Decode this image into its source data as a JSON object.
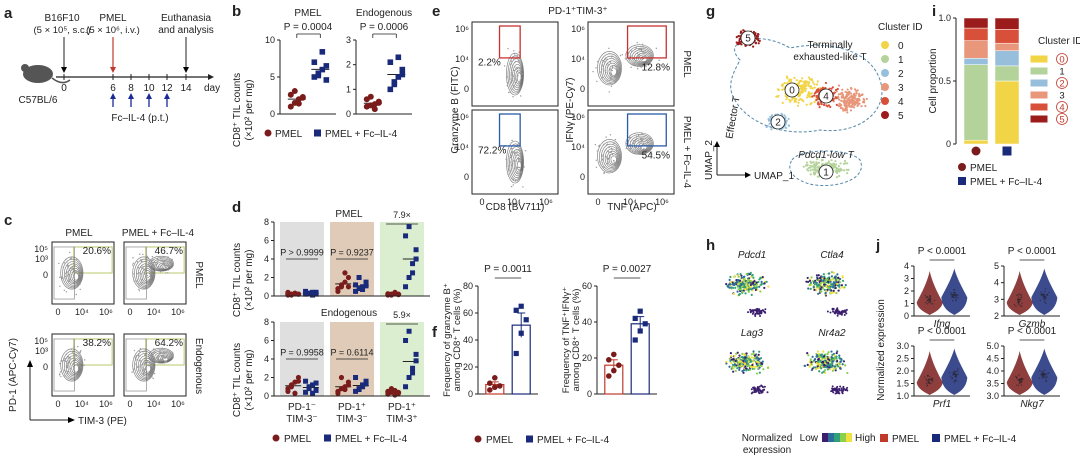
{
  "panel_letters": [
    "a",
    "b",
    "c",
    "d",
    "e",
    "f",
    "g",
    "h",
    "i",
    "j"
  ],
  "colors": {
    "pmel": "#7b1c1c",
    "fc": "#1a2a7a",
    "grey_bg": "#d9d9d9",
    "tan_bg": "#d9c2aa",
    "green_bg": "#d6ebc8",
    "red_gate": "#c83232",
    "blue_gate": "#2a5aa8"
  },
  "panel_a": {
    "tumor": "B16F10",
    "tumor_dose": "(5 × 10⁵, s.c.)",
    "pmel": "PMEL",
    "pmel_dose": "(5 × 10⁶, i.v.)",
    "endpoint": "Euthanasia",
    "endpoint2": "and analysis",
    "days": [
      "0",
      "6",
      "8",
      "10",
      "12",
      "14"
    ],
    "day_unit": "day",
    "mouse": "C57BL/6",
    "treatment": "Fc–IL-4 (p.t.)"
  },
  "chart_data": [
    {
      "id": "b",
      "type": "scatter",
      "ylabel": "CD8⁺ TIL counts",
      "ylabel2": "(×10² per mg)",
      "subplots": [
        {
          "title": "PMEL",
          "p": "P = 0.0004",
          "ylim": [
            0,
            10
          ],
          "yticks": [
            "0",
            "5",
            "10"
          ],
          "series": [
            {
              "name": "PMEL",
              "values": [
                1.0,
                1.5,
                2.0,
                2.3,
                2.6,
                3.1,
                1.4,
                2.2
              ]
            },
            {
              "name": "PMEL + Fc–IL-4",
              "values": [
                5.0,
                5.5,
                6.0,
                6.5,
                7.0,
                5.2,
                8.4,
                4.6
              ]
            }
          ]
        },
        {
          "title": "Endogenous",
          "p": "P = 0.0006",
          "ylim": [
            0,
            3
          ],
          "yticks": [
            "0",
            "1",
            "2",
            "3"
          ],
          "series": [
            {
              "name": "PMEL",
              "values": [
                0.3,
                0.35,
                0.4,
                0.5,
                0.6,
                0.7,
                0.2,
                0.45
              ]
            },
            {
              "name": "PMEL + Fc–IL-4",
              "values": [
                1.0,
                1.2,
                1.5,
                1.8,
                2.1,
                1.3,
                2.3,
                1.6
              ]
            }
          ]
        }
      ],
      "legend": [
        "PMEL",
        "PMEL + Fc–IL-4"
      ]
    },
    {
      "id": "d",
      "type": "scatter",
      "ylabel": "CD8⁺ TIL counts",
      "ylabel2": "(×10² per mg)",
      "groups": [
        {
          "line1": "PD-1⁻",
          "line2": "TIM-3⁻"
        },
        {
          "line1": "PD-1⁺",
          "line2": "TIM-3⁻"
        },
        {
          "line1": "PD-1⁺",
          "line2": "TIM-3⁺"
        }
      ],
      "subplots": [
        {
          "title": "PMEL",
          "ylim": [
            0,
            8
          ],
          "yticks": [
            "0",
            "2",
            "4",
            "6",
            "8"
          ],
          "annotations": [
            "P > 0.9999",
            "P = 0.9237",
            "7.9×"
          ],
          "series": [
            {
              "name": "PMEL",
              "values": [
                [
                  0.1,
                  0.2,
                  0.3,
                  0.2,
                  0.4,
                  0.1,
                  0.3,
                  0.2
                ],
                [
                  0.5,
                  1.0,
                  1.5,
                  2.0,
                  0.8,
                  1.2,
                  2.5,
                  1.0
                ],
                [
                  0.1,
                  0.2,
                  0.3,
                  0.15,
                  0.25,
                  0.1,
                  0.4,
                  0.2
                ]
              ]
            },
            {
              "name": "PMEL + Fc–IL-4",
              "values": [
                [
                  0.2,
                  0.3,
                  0.4,
                  0.2,
                  0.5,
                  0.3,
                  0.1,
                  0.4
                ],
                [
                  0.5,
                  0.8,
                  1.0,
                  1.5,
                  1.2,
                  2.0,
                  0.7,
                  1.1
                ],
                [
                  1.0,
                  2.0,
                  3.5,
                  5.0,
                  6.5,
                  7.5,
                  2.5,
                  4.0
                ]
              ]
            }
          ]
        },
        {
          "title": "Endogenous",
          "ylim": [
            0,
            8
          ],
          "yticks": [
            "0",
            "2",
            "4",
            "6",
            "8"
          ],
          "annotations": [
            "P = 0.9958",
            "P = 0.6114",
            "5.9×"
          ],
          "series": [
            {
              "name": "PMEL",
              "values": [
                [
                  0.5,
                  1.0,
                  1.5,
                  2.0,
                  0.8,
                  1.2,
                  0.3,
                  1.6
                ],
                [
                  0.3,
                  0.8,
                  1.0,
                  1.5,
                  0.5,
                  2.0,
                  0.7,
                  1.2
                ],
                [
                  0.2,
                  0.4,
                  0.6,
                  0.3,
                  0.5,
                  0.8,
                  0.1,
                  0.4
                ]
              ]
            },
            {
              "name": "PMEL + Fc–IL-4",
              "values": [
                [
                  0.4,
                  0.8,
                  1.2,
                  0.6,
                  1.6,
                  1.0,
                  0.3,
                  1.4
                ],
                [
                  0.5,
                  0.8,
                  1.2,
                  1.6,
                  2.0,
                  0.7,
                  1.0,
                  1.3
                ],
                [
                  1.0,
                  2.0,
                  3.0,
                  4.5,
                  6.0,
                  7.0,
                  2.5,
                  3.8
                ]
              ]
            }
          ]
        }
      ],
      "legend": [
        "PMEL",
        "PMEL + Fc–IL-4"
      ]
    },
    {
      "id": "f",
      "type": "bar",
      "subplots": [
        {
          "p": "P = 0.0011",
          "ylabel1": "Frequency of granzyme B⁺",
          "ylabel2": "among CD8⁺ T cells (%)",
          "ylim": [
            0,
            80
          ],
          "yticks": [
            "0",
            "20",
            "40",
            "60",
            "80"
          ],
          "series": [
            {
              "name": "PMEL",
              "mean": 7,
              "sem": 2,
              "values": [
                3,
                5,
                6,
                8,
                12
              ]
            },
            {
              "name": "PMEL + Fc–IL-4",
              "mean": 51,
              "sem": 9,
              "values": [
                30,
                45,
                55,
                62,
                65
              ]
            }
          ]
        },
        {
          "p": "P = 0.0027",
          "ylabel1": "Frequency of TNF⁺IFNγ⁺",
          "ylabel2": "among CD8⁺ T cells (%)",
          "ylim": [
            0,
            60
          ],
          "yticks": [
            "0",
            "20",
            "40",
            "60"
          ],
          "series": [
            {
              "name": "PMEL",
              "mean": 16,
              "sem": 3,
              "values": [
                10,
                13,
                16,
                19,
                22
              ]
            },
            {
              "name": "PMEL + Fc–IL-4",
              "mean": 39,
              "sem": 4,
              "values": [
                30,
                35,
                39,
                42,
                46
              ]
            }
          ]
        }
      ],
      "legend": [
        "PMEL",
        "PMEL + Fc–IL-4"
      ]
    },
    {
      "id": "i",
      "type": "bar",
      "stacked": true,
      "ylabel": "Cell proportion",
      "ylim": [
        0,
        1.0
      ],
      "yticks": [
        "0",
        "0.5",
        "1.0"
      ],
      "categories": [
        "PMEL",
        "PMEL + Fc–IL-4"
      ],
      "series": [
        {
          "name": "0",
          "values": [
            0.03,
            0.5
          ]
        },
        {
          "name": "1",
          "values": [
            0.6,
            0.12
          ]
        },
        {
          "name": "2",
          "values": [
            0.05,
            0.12
          ]
        },
        {
          "name": "3",
          "values": [
            0.14,
            0.06
          ]
        },
        {
          "name": "4",
          "values": [
            0.1,
            0.11
          ]
        },
        {
          "name": "5",
          "values": [
            0.08,
            0.09
          ]
        }
      ],
      "colors": [
        "#f2d447",
        "#b4d39b",
        "#97bfdc",
        "#e8977a",
        "#d9503a",
        "#9c1c1c"
      ],
      "legend_title": "Cluster ID",
      "legend": [
        "PMEL",
        "PMEL + Fc–IL-4"
      ]
    },
    {
      "id": "j",
      "type": "violin",
      "ylabel": "Normalized expression",
      "subplots": [
        {
          "gene": "Ifng",
          "p": "P < 0.0001",
          "ylim": [
            0,
            4
          ],
          "yticks": [
            "0",
            "1",
            "2",
            "3",
            "4"
          ]
        },
        {
          "gene": "Gzmb",
          "p": "P < 0.0001",
          "ylim": [
            2,
            5
          ],
          "yticks": [
            "2",
            "3",
            "4",
            "5"
          ]
        },
        {
          "gene": "Prf1",
          "p": "P < 0.0001",
          "ylim": [
            1.0,
            3.0
          ],
          "yticks": [
            "1.0",
            "1.5",
            "2.0",
            "2.5",
            "3.0"
          ]
        },
        {
          "gene": "Nkg7",
          "p": "P < 0.0001",
          "ylim": [
            3.0,
            5.0
          ],
          "yticks": [
            "3.0",
            "3.5",
            "4.0",
            "4.5",
            "5.0"
          ]
        }
      ],
      "legend": [
        "PMEL",
        "PMEL + Fc–IL-4"
      ]
    }
  ],
  "panel_c": {
    "col_titles": [
      "PMEL",
      "PMEL + Fc–IL-4"
    ],
    "row_labels": [
      "PMEL",
      "Endogenous"
    ],
    "percents": [
      "20.6%",
      "46.7%",
      "38.2%",
      "64.2%"
    ],
    "yticks": [
      "10⁵",
      "10³",
      "0"
    ],
    "xticks": [
      "0",
      "10⁴",
      "10⁶"
    ],
    "yaxis": "PD-1 (APC-Cy7)",
    "xaxis": "TIM-3 (PE)"
  },
  "panel_e": {
    "title": "PD-1⁺TIM-3⁺",
    "left_yaxis": "Granzyme B (FITC)",
    "left_xaxis": "CD8 (BV711)",
    "right_yaxis": "IFNγ (PE-Cy7)",
    "right_xaxis": "TNF (APC)",
    "percents": [
      "2.2%",
      "12.8%",
      "72.2%",
      "54.5%"
    ],
    "row_labels": [
      "PMEL",
      "PMEL + Fc–IL-4"
    ],
    "yticks": [
      "10⁶",
      "10⁴",
      "0"
    ],
    "xticks": [
      "0",
      "10⁴",
      "10⁶"
    ]
  },
  "panel_g": {
    "legend_title": "Cluster ID",
    "clusters": [
      "0",
      "1",
      "2",
      "3",
      "4",
      "5"
    ],
    "labels": {
      "exhausted1": "Terminally",
      "exhausted2": "exhausted-like T",
      "effector": "Effector T",
      "pdcd1low": "Pdcd1-low T"
    },
    "axis_x": "UMAP_1",
    "axis_y": "UMAP_2"
  },
  "panel_h": {
    "genes": [
      "Pdcd1",
      "Ctla4",
      "Lag3",
      "Nr4a2"
    ],
    "scale_label": "Normalized",
    "scale_label2": "expression",
    "low": "Low",
    "high": "High"
  }
}
